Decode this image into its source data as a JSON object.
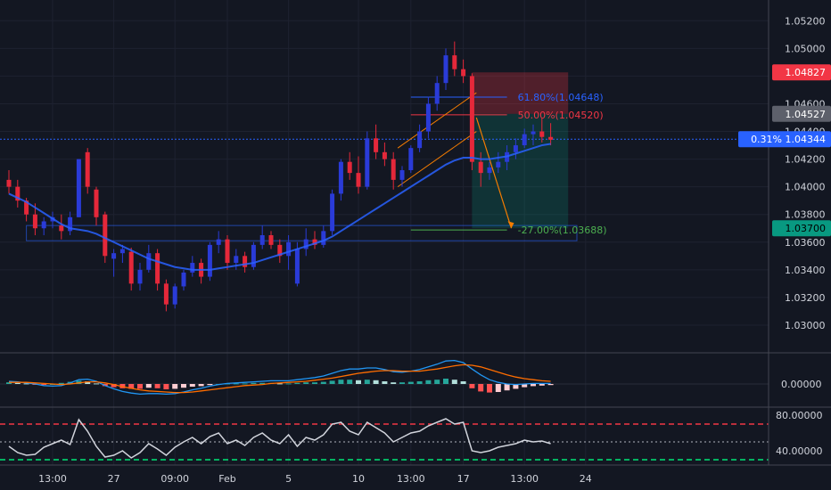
{
  "chart_data": {
    "type": "candlestick",
    "theme": {
      "background": "#131722",
      "grid": "#1e2230",
      "axis_text": "#d1d4dc",
      "up": "#2a3bd8",
      "down": "#e5283a",
      "ma": "#2962ff"
    },
    "price_axis": {
      "range": [
        1.028,
        1.0535
      ],
      "ticks": [
        "1.05200",
        "1.05000",
        "1.04800",
        "1.04600",
        "1.04400",
        "1.04200",
        "1.04000",
        "1.03800",
        "1.03600",
        "1.03400",
        "1.03200",
        "1.03000"
      ],
      "tick_values": [
        1.052,
        1.05,
        1.048,
        1.046,
        1.044,
        1.042,
        1.04,
        1.038,
        1.036,
        1.034,
        1.032,
        1.03
      ]
    },
    "time_axis": {
      "labels": [
        "13:00",
        "27",
        "09:00",
        "Feb",
        "5",
        "10",
        "13:00",
        "17",
        "13:00",
        "24"
      ],
      "label_index": [
        5,
        12,
        19,
        25,
        32,
        40,
        46,
        52,
        59,
        66
      ]
    },
    "price_tags": [
      {
        "text": "1.04827",
        "value": 1.04827,
        "color": "#f23645",
        "text_color": "#ffffff"
      },
      {
        "text": "1.04527",
        "value": 1.04527,
        "color": "#5d606b",
        "text_color": "#ffffff"
      },
      {
        "text": "0.31%  1.04344",
        "value": 1.04344,
        "color": "#2962ff",
        "text_color": "#ffffff"
      },
      {
        "text": "1.03700",
        "value": 1.037,
        "color": "#089981",
        "text_color": "#000000"
      }
    ],
    "fib_levels": [
      {
        "label": "61.80%(1.04648)",
        "value": 1.04648,
        "color": "#2962ff"
      },
      {
        "label": "50.00%(1.04520)",
        "value": 1.0452,
        "color": "#f23645"
      },
      {
        "label": "-27.00%(1.03688)",
        "value": 1.03688,
        "color": "#4caf50"
      }
    ],
    "current_price": 1.04344,
    "position": {
      "start_index": 53,
      "end_index": 64,
      "entry": 1.04527,
      "stop": 1.04827,
      "target": 1.037
    },
    "arrow": {
      "from_index": 53.5,
      "from_value": 1.045,
      "to_index": 57.5,
      "to_value": 1.037
    },
    "channel": [
      {
        "from_index": 44.5,
        "from_value": 1.0428,
        "to_index": 53.5,
        "to_value": 1.0468
      },
      {
        "from_index": 44.5,
        "from_value": 1.04,
        "to_index": 53.5,
        "to_value": 1.044
      }
    ],
    "support_box": {
      "from_index": 2,
      "to_index": 65,
      "top": 1.0372,
      "bottom": 1.0361
    },
    "candles": [
      [
        1.0405,
        1.0412,
        1.0395,
        1.04
      ],
      [
        1.04,
        1.0405,
        1.0385,
        1.039
      ],
      [
        1.039,
        1.0392,
        1.0375,
        1.038
      ],
      [
        1.038,
        1.0388,
        1.0365,
        1.037
      ],
      [
        1.037,
        1.0378,
        1.0365,
        1.0375
      ],
      [
        1.0375,
        1.0382,
        1.037,
        1.0378
      ],
      [
        1.0372,
        1.038,
        1.0362,
        1.0368
      ],
      [
        1.0368,
        1.0382,
        1.0365,
        1.0378
      ],
      [
        1.0378,
        1.042,
        1.0378,
        1.042
      ],
      [
        1.0425,
        1.0428,
        1.0395,
        1.04
      ],
      [
        1.0398,
        1.04,
        1.0372,
        1.0378
      ],
      [
        1.038,
        1.0382,
        1.0345,
        1.035
      ],
      [
        1.0348,
        1.0355,
        1.0335,
        1.0352
      ],
      [
        1.0352,
        1.0358,
        1.0345,
        1.0355
      ],
      [
        1.0353,
        1.0356,
        1.0325,
        1.033
      ],
      [
        1.033,
        1.0345,
        1.0325,
        1.034
      ],
      [
        1.034,
        1.0358,
        1.0338,
        1.0352
      ],
      [
        1.0352,
        1.0355,
        1.0325,
        1.033
      ],
      [
        1.033,
        1.0333,
        1.031,
        1.0315
      ],
      [
        1.0315,
        1.033,
        1.0312,
        1.0328
      ],
      [
        1.0328,
        1.034,
        1.0325,
        1.0338
      ],
      [
        1.0338,
        1.035,
        1.0335,
        1.0345
      ],
      [
        1.0345,
        1.0348,
        1.033,
        1.0335
      ],
      [
        1.0335,
        1.036,
        1.0332,
        1.0358
      ],
      [
        1.0358,
        1.0368,
        1.0352,
        1.0362
      ],
      [
        1.0362,
        1.0365,
        1.034,
        1.0345
      ],
      [
        1.0345,
        1.0355,
        1.034,
        1.035
      ],
      [
        1.035,
        1.0353,
        1.0338,
        1.0342
      ],
      [
        1.0342,
        1.036,
        1.034,
        1.0358
      ],
      [
        1.0358,
        1.0372,
        1.0355,
        1.0365
      ],
      [
        1.0365,
        1.0368,
        1.0355,
        1.0358
      ],
      [
        1.0358,
        1.0362,
        1.0345,
        1.035
      ],
      [
        1.035,
        1.0365,
        1.034,
        1.036
      ],
      [
        1.033,
        1.036,
        1.0328,
        1.0355
      ],
      [
        1.0355,
        1.037,
        1.035,
        1.0362
      ],
      [
        1.0362,
        1.0368,
        1.0355,
        1.0358
      ],
      [
        1.0358,
        1.0372,
        1.0356,
        1.0368
      ],
      [
        1.0368,
        1.0398,
        1.0365,
        1.0395
      ],
      [
        1.0395,
        1.042,
        1.039,
        1.0418
      ],
      [
        1.0418,
        1.0425,
        1.0405,
        1.041
      ],
      [
        1.041,
        1.0422,
        1.0395,
        1.04
      ],
      [
        1.04,
        1.044,
        1.0398,
        1.0435
      ],
      [
        1.0435,
        1.0445,
        1.042,
        1.0425
      ],
      [
        1.0425,
        1.0432,
        1.0415,
        1.042
      ],
      [
        1.042,
        1.0425,
        1.0398,
        1.0405
      ],
      [
        1.0405,
        1.0415,
        1.04,
        1.0412
      ],
      [
        1.0412,
        1.043,
        1.041,
        1.0428
      ],
      [
        1.0428,
        1.0445,
        1.0425,
        1.044
      ],
      [
        1.044,
        1.0465,
        1.0435,
        1.046
      ],
      [
        1.046,
        1.048,
        1.0455,
        1.0475
      ],
      [
        1.0475,
        1.05,
        1.047,
        1.0495
      ],
      [
        1.0495,
        1.0505,
        1.048,
        1.0485
      ],
      [
        1.0485,
        1.0492,
        1.0475,
        1.048
      ],
      [
        1.048,
        1.0482,
        1.0412,
        1.0418
      ],
      [
        1.0418,
        1.0425,
        1.04,
        1.041
      ],
      [
        1.041,
        1.0418,
        1.0405,
        1.0414
      ],
      [
        1.0414,
        1.0425,
        1.041,
        1.0418
      ],
      [
        1.0418,
        1.043,
        1.0412,
        1.0425
      ],
      [
        1.0425,
        1.0435,
        1.042,
        1.043
      ],
      [
        1.043,
        1.0442,
        1.0428,
        1.0438
      ],
      [
        1.0438,
        1.0445,
        1.043,
        1.044
      ],
      [
        1.044,
        1.045,
        1.0432,
        1.0436
      ],
      [
        1.0436,
        1.0446,
        1.043,
        1.0434
      ]
    ],
    "ma": [
      1.0395,
      1.0392,
      1.0389,
      1.0385,
      1.0381,
      1.0377,
      1.0373,
      1.037,
      1.0369,
      1.0368,
      1.0366,
      1.0363,
      1.036,
      1.0357,
      1.0354,
      1.0351,
      1.0348,
      1.0346,
      1.0344,
      1.0342,
      1.0341,
      1.034,
      1.034,
      1.034,
      1.0341,
      1.0342,
      1.0343,
      1.0344,
      1.0345,
      1.0347,
      1.0349,
      1.0351,
      1.0353,
      1.0355,
      1.0357,
      1.0359,
      1.0361,
      1.0364,
      1.0368,
      1.0372,
      1.0376,
      1.038,
      1.0384,
      1.0388,
      1.0392,
      1.0396,
      1.04,
      1.0404,
      1.0408,
      1.0412,
      1.0416,
      1.0419,
      1.0421,
      1.0421,
      1.042,
      1.042,
      1.0421,
      1.0422,
      1.0424,
      1.0426,
      1.0428,
      1.043,
      1.0431
    ],
    "macd": {
      "zero_label": "0.00000",
      "hist": [
        0.3,
        0.2,
        0.1,
        -0.1,
        -0.1,
        0,
        0.2,
        0.4,
        0.6,
        0.5,
        0.1,
        -0.4,
        -0.6,
        -0.8,
        -0.9,
        -0.9,
        -0.7,
        -0.8,
        -1,
        -0.9,
        -0.7,
        -0.5,
        -0.4,
        -0.2,
        0,
        0.1,
        0.1,
        0.1,
        0.2,
        0.2,
        0.2,
        0.1,
        0.1,
        0.2,
        0.3,
        0.3,
        0.4,
        0.6,
        0.8,
        0.8,
        0.7,
        0.8,
        0.7,
        0.5,
        0.3,
        0.3,
        0.4,
        0.5,
        0.7,
        0.8,
        1,
        0.8,
        0.5,
        -0.8,
        -1.4,
        -1.6,
        -1.5,
        -1.2,
        -0.9,
        -0.6,
        -0.4,
        -0.3,
        -0.2
      ],
      "macd_line": [
        0.5,
        0.4,
        0.2,
        0,
        -0.3,
        -0.4,
        -0.3,
        0.2,
        0.8,
        0.9,
        0.5,
        -0.3,
        -0.9,
        -1.4,
        -1.7,
        -1.9,
        -1.8,
        -1.8,
        -1.9,
        -1.8,
        -1.5,
        -1.1,
        -0.8,
        -0.4,
        -0.1,
        0.1,
        0.2,
        0.3,
        0.4,
        0.5,
        0.6,
        0.6,
        0.6,
        0.8,
        1,
        1.2,
        1.5,
        2,
        2.5,
        2.8,
        2.8,
        3,
        3,
        2.7,
        2.3,
        2.2,
        2.4,
        2.7,
        3.2,
        3.7,
        4.3,
        4.4,
        4,
        2.8,
        1.7,
        0.8,
        0.3,
        0,
        -0.1,
        0,
        0.1,
        0.1,
        0.1
      ],
      "signal_line": [
        0.3,
        0.3,
        0.3,
        0.2,
        0.1,
        0,
        -0.1,
        0,
        0.2,
        0.4,
        0.4,
        0.2,
        -0.1,
        -0.5,
        -0.8,
        -1.1,
        -1.3,
        -1.4,
        -1.5,
        -1.6,
        -1.6,
        -1.5,
        -1.3,
        -1.1,
        -0.9,
        -0.7,
        -0.5,
        -0.3,
        -0.2,
        -0.1,
        0.1,
        0.2,
        0.3,
        0.4,
        0.5,
        0.7,
        0.9,
        1.1,
        1.4,
        1.7,
        2,
        2.2,
        2.4,
        2.5,
        2.5,
        2.4,
        2.4,
        2.4,
        2.6,
        2.8,
        3.1,
        3.4,
        3.6,
        3.5,
        3.2,
        2.7,
        2.2,
        1.7,
        1.3,
        1,
        0.8,
        0.6,
        0.5
      ]
    },
    "rsi": {
      "ticks": [
        "80.00000",
        "40.00000"
      ],
      "tick_values": [
        80,
        40
      ],
      "overbought": 70,
      "oversold": 30,
      "mid": 50,
      "values": [
        45,
        38,
        35,
        36,
        44,
        48,
        52,
        47,
        75,
        62,
        45,
        33,
        35,
        40,
        32,
        38,
        48,
        42,
        35,
        44,
        50,
        55,
        48,
        56,
        60,
        48,
        52,
        46,
        55,
        60,
        52,
        48,
        58,
        45,
        55,
        52,
        58,
        70,
        72,
        62,
        58,
        72,
        66,
        60,
        50,
        55,
        60,
        62,
        68,
        72,
        76,
        70,
        72,
        40,
        38,
        40,
        44,
        46,
        48,
        52,
        50,
        51,
        48
      ]
    }
  }
}
